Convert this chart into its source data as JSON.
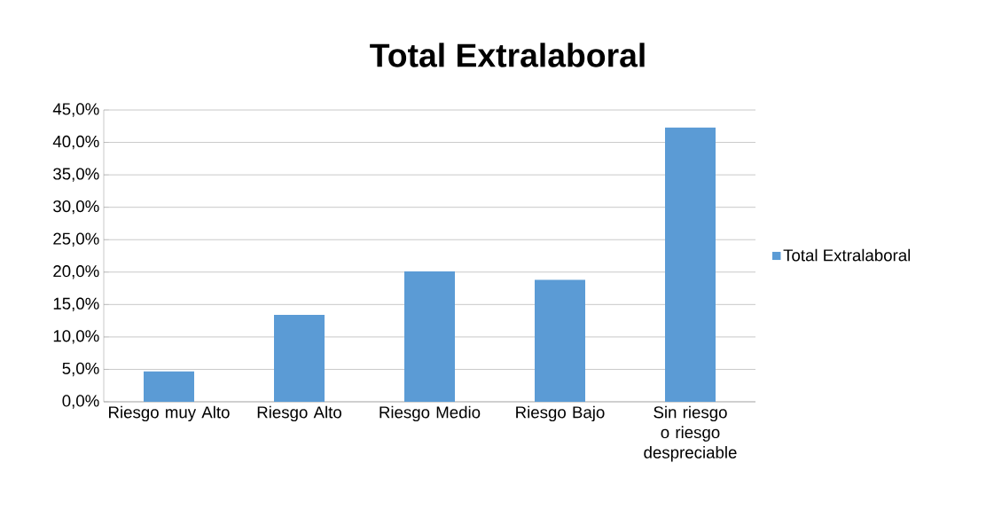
{
  "chart_data": {
    "type": "bar",
    "title": "Total Extralaboral",
    "categories": [
      "Riesgo muy Alto",
      "Riesgo Alto",
      "Riesgo Medio",
      "Riesgo Bajo",
      "Sin riesgo o riesgo despreciable"
    ],
    "series": [
      {
        "name": "Total Extralaboral",
        "color": "#5b9bd5",
        "values": [
          4.7,
          13.4,
          20.1,
          18.8,
          42.3
        ]
      }
    ],
    "ylim": [
      0,
      45
    ],
    "yticks": [
      {
        "value": 0,
        "label": "0,0%"
      },
      {
        "value": 5,
        "label": "5,0%"
      },
      {
        "value": 10,
        "label": "10,0%"
      },
      {
        "value": 15,
        "label": "15,0%"
      },
      {
        "value": 20,
        "label": "20,0%"
      },
      {
        "value": 25,
        "label": "25,0%"
      },
      {
        "value": 30,
        "label": "30,0%"
      },
      {
        "value": 35,
        "label": "35,0%"
      },
      {
        "value": 40,
        "label": "40,0%"
      },
      {
        "value": 45,
        "label": "45,0%"
      }
    ],
    "grid": "y",
    "legend": "right"
  }
}
